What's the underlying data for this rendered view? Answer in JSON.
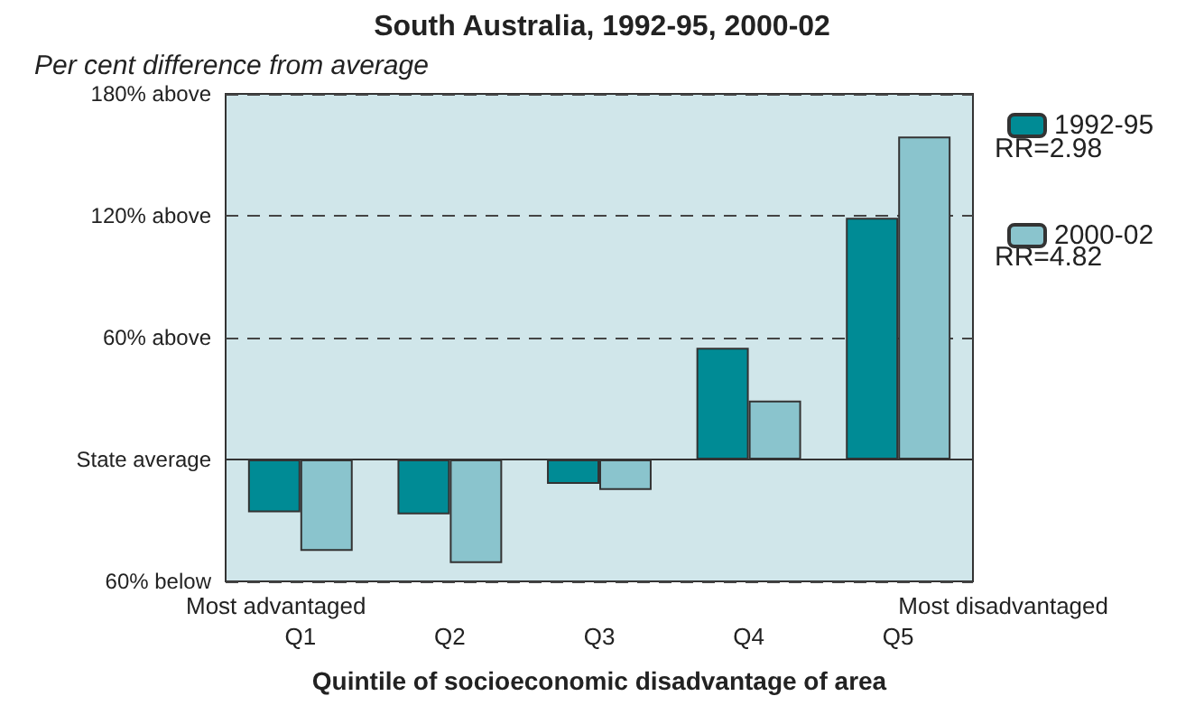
{
  "chart_data": {
    "type": "bar",
    "title": "South Australia, 1992-95, 2000-02",
    "subtitle": "Per cent difference from average",
    "xlabel": "Quintile of socioeconomic disadvantage of area",
    "categories": [
      "Q1",
      "Q2",
      "Q3",
      "Q4",
      "Q5"
    ],
    "series": [
      {
        "name": "1992-95",
        "color": "#008b95",
        "values": [
          -26,
          -27,
          -12,
          55,
          119
        ]
      },
      {
        "name": "2000-02",
        "color": "#8ac4cd",
        "values": [
          -45,
          -51,
          -15,
          29,
          159
        ]
      }
    ],
    "ylim": [
      -60,
      180
    ],
    "yticks": [
      {
        "value": -60,
        "label": "60% below"
      },
      {
        "value": 0,
        "label": "State average"
      },
      {
        "value": 60,
        "label": "60% above"
      },
      {
        "value": 120,
        "label": "120% above"
      },
      {
        "value": 180,
        "label": "180% above"
      }
    ],
    "grid": "y",
    "legend": "right",
    "annotations": [
      "Most advantaged",
      "Most disadvantaged",
      "RR=2.98",
      "RR=4.82"
    ]
  }
}
